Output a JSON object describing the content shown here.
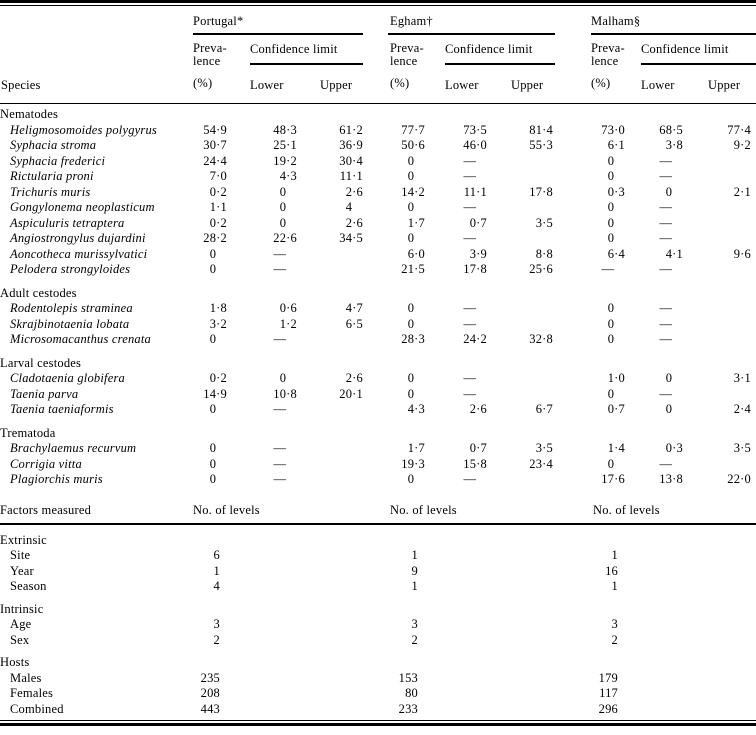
{
  "header": {
    "species_label": "Species",
    "prevalence_lines": [
      "Preva-",
      "lence",
      "(%)"
    ],
    "confidence_label": "Confidence limit",
    "lower_label": "Lower",
    "upper_label": "Upper",
    "groups": [
      {
        "name": "Portugal*"
      },
      {
        "name": "Egham†"
      },
      {
        "name": "Malham§"
      }
    ]
  },
  "species_table": {
    "sections": [
      {
        "name": "Nematodes",
        "rows": [
          {
            "species": "Heligmosomoides polygyrus",
            "values": [
              "54·9",
              "48·3",
              "61·2",
              "77·7",
              "73·5",
              "81·4",
              "73·0",
              "68·5",
              "77·4"
            ]
          },
          {
            "species": "Syphacia stroma",
            "values": [
              "30·7",
              "25·1",
              "36·9",
              "50·6",
              "46·0",
              "55·3",
              "6·1",
              "3·8",
              "9·2"
            ]
          },
          {
            "species": "Syphacia frederici",
            "values": [
              "24·4",
              "19·2",
              "30·4",
              "0",
              "—",
              "",
              "0",
              "—",
              ""
            ]
          },
          {
            "species": "Rictularia proni",
            "values": [
              "7·0",
              "4·3",
              "11·1",
              "0",
              "—",
              "",
              "0",
              "—",
              ""
            ]
          },
          {
            "species": "Trichuris muris",
            "values": [
              "0·2",
              "0",
              "2·6",
              "14·2",
              "11·1",
              "17·8",
              "0·3",
              "0",
              "2·1"
            ]
          },
          {
            "species": "Gongylonema neoplasticum",
            "values": [
              "1·1",
              "0",
              "4",
              "0",
              "—",
              "",
              "0",
              "—",
              ""
            ]
          },
          {
            "species": "Aspiculuris tetraptera",
            "values": [
              "0·2",
              "0",
              "2·6",
              "1·7",
              "0·7",
              "3·5",
              "0",
              "—",
              ""
            ]
          },
          {
            "species": "Angiostrongylus dujardini",
            "values": [
              "28·2",
              "22·6",
              "34·5",
              "0",
              "—",
              "",
              "0",
              "—",
              ""
            ]
          },
          {
            "species": "Aoncotheca murissylvatici",
            "values": [
              "0",
              "—",
              "",
              "6·0",
              "3·9",
              "8·8",
              "6·4",
              "4·1",
              "9·6"
            ]
          },
          {
            "species": "Pelodera strongyloides",
            "values": [
              "0",
              "—",
              "",
              "21·5",
              "17·8",
              "25·6",
              "—",
              "—",
              ""
            ]
          }
        ]
      },
      {
        "name": "Adult cestodes",
        "rows": [
          {
            "species": "Rodentolepis straminea",
            "values": [
              "1·8",
              "0·6",
              "4·7",
              "0",
              "—",
              "",
              "0",
              "—",
              ""
            ]
          },
          {
            "species": "Skrajbinotaenia lobata",
            "values": [
              "3·2",
              "1·2",
              "6·5",
              "0",
              "—",
              "",
              "0",
              "—",
              ""
            ]
          },
          {
            "species": "Microsomacanthus crenata",
            "values": [
              "0",
              "—",
              "",
              "28·3",
              "24·2",
              "32·8",
              "0",
              "—",
              ""
            ]
          }
        ]
      },
      {
        "name": "Larval cestodes",
        "rows": [
          {
            "species": "Cladotaenia globifera",
            "values": [
              "0·2",
              "0",
              "2·6",
              "0",
              "—",
              "",
              "1·0",
              "0",
              "3·1"
            ]
          },
          {
            "species": "Taenia parva",
            "values": [
              "14·9",
              "10·8",
              "20·1",
              "0",
              "—",
              "",
              "0",
              "—",
              ""
            ]
          },
          {
            "species": "Taenia taeniaformis",
            "values": [
              "0",
              "—",
              "",
              "4·3",
              "2·6",
              "6·7",
              "0·7",
              "0",
              "2·4"
            ]
          }
        ]
      },
      {
        "name": "Trematoda",
        "rows": [
          {
            "species": "Brachylaemus recurvum",
            "values": [
              "0",
              "—",
              "",
              "1·7",
              "0·7",
              "3·5",
              "1·4",
              "0·3",
              "3·5"
            ]
          },
          {
            "species": "Corrigia vitta",
            "values": [
              "0",
              "—",
              "",
              "19·3",
              "15·8",
              "23·4",
              "0",
              "—",
              ""
            ]
          },
          {
            "species": "Plagiorchis muris",
            "values": [
              "0",
              "—",
              "",
              "0",
              "—",
              "",
              "17·6",
              "13·8",
              "22·0"
            ]
          }
        ]
      }
    ]
  },
  "factors_table": {
    "header_label": "Factors measured",
    "levels_label": "No. of levels",
    "groups": [
      {
        "name": "Extrinsic",
        "rows": [
          {
            "label": "Site",
            "values": [
              "6",
              "1",
              "1"
            ]
          },
          {
            "label": "Year",
            "values": [
              "1",
              "9",
              "16"
            ]
          },
          {
            "label": "Season",
            "values": [
              "4",
              "1",
              "1"
            ]
          }
        ]
      },
      {
        "name": "Intrinsic",
        "rows": [
          {
            "label": "Age",
            "values": [
              "3",
              "3",
              "3"
            ]
          },
          {
            "label": "Sex",
            "values": [
              "2",
              "2",
              "2"
            ]
          }
        ]
      },
      {
        "name": "Hosts",
        "rows": [
          {
            "label": "Males",
            "values": [
              "235",
              "153",
              "179"
            ]
          },
          {
            "label": "Females",
            "values": [
              "208",
              "80",
              "117"
            ]
          },
          {
            "label": "Combined",
            "values": [
              "443",
              "233",
              "296"
            ]
          }
        ]
      }
    ]
  }
}
